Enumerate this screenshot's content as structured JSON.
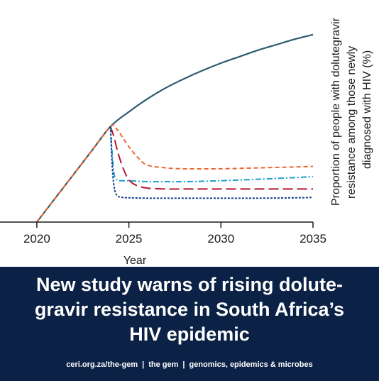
{
  "chart_data": {
    "type": "line",
    "title": "",
    "xlabel": "Year",
    "ylabel_lines": [
      "Proportion of people with dolutegravir",
      "resistance among those newly",
      "diagnosed with HIV (%)"
    ],
    "xlim": [
      2018,
      2035
    ],
    "ylim": [
      0,
      100
    ],
    "xticks": [
      2020,
      2025,
      2030,
      2035
    ],
    "grid": false,
    "legend": "none",
    "series": [
      {
        "color": "#2b5b6e",
        "dash": "solid",
        "x": [
          2020,
          2021,
          2022,
          2023,
          2024,
          2025,
          2026,
          2027,
          2028,
          2029,
          2030,
          2031,
          2032,
          2033,
          2034,
          2035
        ],
        "y": [
          0,
          13,
          26,
          39,
          52,
          60,
          67,
          73,
          78,
          82.5,
          86.5,
          90,
          93.5,
          96.5,
          99.5,
          102
        ]
      },
      {
        "color": "#ef6430",
        "dash": "6,4",
        "x": [
          2020,
          2021,
          2022,
          2023,
          2024,
          2024.3,
          2024.6,
          2025,
          2025.5,
          2026,
          2027,
          2028,
          2030,
          2032,
          2034,
          2035
        ],
        "y": [
          0,
          13,
          26,
          39,
          52,
          51,
          47,
          41,
          35,
          31,
          29.5,
          29,
          29,
          29.5,
          30,
          30.3
        ]
      },
      {
        "color": "#b5152b",
        "dash": "14,6",
        "x": [
          2024,
          2024.2,
          2024.4,
          2024.7,
          2025,
          2025.4,
          2026,
          2027,
          2028,
          2030,
          2032,
          2034,
          2035
        ],
        "y": [
          52,
          46,
          38,
          29,
          23,
          20,
          18.5,
          18,
          18,
          18,
          18,
          18,
          18
        ]
      },
      {
        "color": "#1a9fcf",
        "dash": "8,3,2,3",
        "x": [
          2024,
          2024.1,
          2024.2,
          2024.35,
          2024.6,
          2025,
          2026,
          2027,
          2028,
          2030,
          2032,
          2034,
          2035
        ],
        "y": [
          52,
          36,
          26,
          23,
          22.5,
          22.5,
          22,
          22,
          22,
          22.5,
          23.3,
          24.2,
          24.8
        ]
      },
      {
        "color": "#173f8a",
        "dash": "3,2",
        "x": [
          2024,
          2024.1,
          2024.2,
          2024.35,
          2024.6,
          2025,
          2026,
          2027,
          2028,
          2030,
          2032,
          2034,
          2035
        ],
        "y": [
          52,
          30,
          19,
          14.5,
          13.5,
          13.2,
          13,
          13,
          13,
          13,
          13,
          13.2,
          13.4
        ]
      }
    ]
  },
  "banner": {
    "headline_line1": "New study warns of rising dolute-",
    "headline_line2": "gravir resistance in South Africa’s",
    "headline_line3": "HIV epidemic",
    "footer_url": "ceri.org.za/the-gem",
    "footer_sep": "|",
    "footer_name": "the gem",
    "footer_tagline": "genomics, epidemics & microbes"
  }
}
